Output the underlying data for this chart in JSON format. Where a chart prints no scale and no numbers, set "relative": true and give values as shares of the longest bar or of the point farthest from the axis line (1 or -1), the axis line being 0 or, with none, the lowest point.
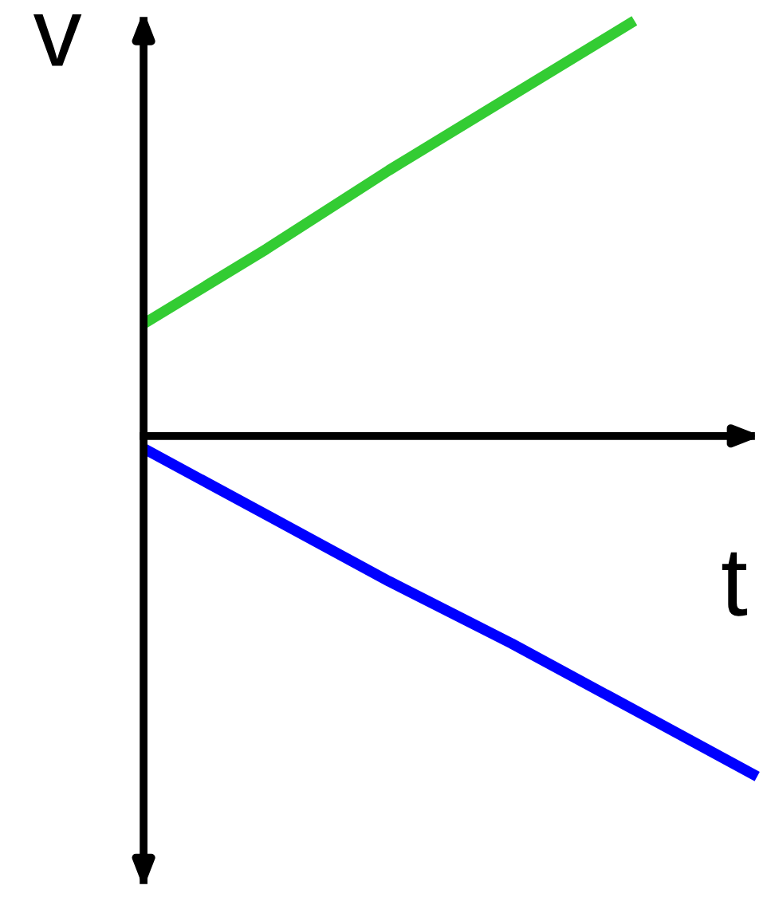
{
  "chart_data": {
    "type": "line",
    "relative": true,
    "xlabel": "t",
    "ylabel": "v",
    "categories": [
      null,
      null,
      null,
      null,
      null,
      null
    ],
    "series": [
      {
        "color": "#33cc33",
        "values": [
          0.27,
          0.45,
          0.64,
          0.82,
          1.0,
          null
        ]
      },
      {
        "color": "#0000ff",
        "values": [
          -0.03,
          -0.19,
          -0.35,
          -0.5,
          -0.66,
          -0.82
        ]
      }
    ],
    "legend": false,
    "marker": "none",
    "line_style": "solid"
  }
}
